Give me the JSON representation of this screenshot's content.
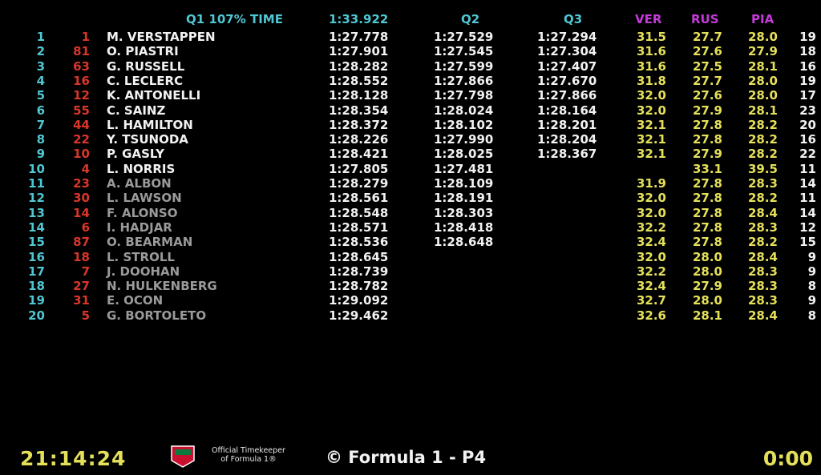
{
  "header": {
    "q1_label": "Q1 107% TIME",
    "q1_107_time": "1:33.922",
    "q2_label": "Q2",
    "q3_label": "Q3",
    "sector_labels": [
      "VER",
      "RUS",
      "PIA"
    ]
  },
  "rows": [
    {
      "pos": "1",
      "num": "1",
      "name": "M.  VERSTAPPEN",
      "q1": "1:27.778",
      "q2": "1:27.529",
      "q3": "1:27.294",
      "s1": "31.5",
      "s2": "27.7",
      "s3": "28.0",
      "laps": "19"
    },
    {
      "pos": "2",
      "num": "81",
      "name": "O.  PIASTRI",
      "q1": "1:27.901",
      "q2": "1:27.545",
      "q3": "1:27.304",
      "s1": "31.6",
      "s2": "27.6",
      "s3": "27.9",
      "laps": "18"
    },
    {
      "pos": "3",
      "num": "63",
      "name": "G.  RUSSELL",
      "q1": "1:28.282",
      "q2": "1:27.599",
      "q3": "1:27.407",
      "s1": "31.6",
      "s2": "27.5",
      "s3": "28.1",
      "laps": "16"
    },
    {
      "pos": "4",
      "num": "16",
      "name": "C.  LECLERC",
      "q1": "1:28.552",
      "q2": "1:27.866",
      "q3": "1:27.670",
      "s1": "31.8",
      "s2": "27.7",
      "s3": "28.0",
      "laps": "19"
    },
    {
      "pos": "5",
      "num": "12",
      "name": "K.  ANTONELLI",
      "q1": "1:28.128",
      "q2": "1:27.798",
      "q3": "1:27.866",
      "s1": "32.0",
      "s2": "27.6",
      "s3": "28.0",
      "laps": "17"
    },
    {
      "pos": "6",
      "num": "55",
      "name": "C.  SAINZ",
      "q1": "1:28.354",
      "q2": "1:28.024",
      "q3": "1:28.164",
      "s1": "32.0",
      "s2": "27.9",
      "s3": "28.1",
      "laps": "23"
    },
    {
      "pos": "7",
      "num": "44",
      "name": "L.  HAMILTON",
      "q1": "1:28.372",
      "q2": "1:28.102",
      "q3": "1:28.201",
      "s1": "32.1",
      "s2": "27.8",
      "s3": "28.2",
      "laps": "20"
    },
    {
      "pos": "8",
      "num": "22",
      "name": "Y.  TSUNODA",
      "q1": "1:28.226",
      "q2": "1:27.990",
      "q3": "1:28.204",
      "s1": "32.1",
      "s2": "27.8",
      "s3": "28.2",
      "laps": "16"
    },
    {
      "pos": "9",
      "num": "10",
      "name": "P.  GASLY",
      "q1": "1:28.421",
      "q2": "1:28.025",
      "q3": "1:28.367",
      "s1": "32.1",
      "s2": "27.9",
      "s3": "28.2",
      "laps": "22"
    },
    {
      "pos": "10",
      "num": "4",
      "name": "L.  NORRIS",
      "q1": "1:27.805",
      "q2": "1:27.481",
      "q3": "",
      "s1": "",
      "s2": "33.1",
      "s3": "39.5",
      "laps": "11"
    },
    {
      "pos": "11",
      "num": "23",
      "name": "A.  ALBON",
      "q1": "1:28.279",
      "q2": "1:28.109",
      "q3": "",
      "s1": "31.9",
      "s2": "27.8",
      "s3": "28.3",
      "laps": "14",
      "out": true
    },
    {
      "pos": "12",
      "num": "30",
      "name": "L.  LAWSON",
      "q1": "1:28.561",
      "q2": "1:28.191",
      "q3": "",
      "s1": "32.0",
      "s2": "27.8",
      "s3": "28.2",
      "laps": "11",
      "out": true
    },
    {
      "pos": "13",
      "num": "14",
      "name": "F.  ALONSO",
      "q1": "1:28.548",
      "q2": "1:28.303",
      "q3": "",
      "s1": "32.0",
      "s2": "27.8",
      "s3": "28.4",
      "laps": "14",
      "out": true
    },
    {
      "pos": "14",
      "num": "6",
      "name": "I.  HADJAR",
      "q1": "1:28.571",
      "q2": "1:28.418",
      "q3": "",
      "s1": "32.2",
      "s2": "27.8",
      "s3": "28.3",
      "laps": "12",
      "out": true
    },
    {
      "pos": "15",
      "num": "87",
      "name": "O.  BEARMAN",
      "q1": "1:28.536",
      "q2": "1:28.648",
      "q3": "",
      "s1": "32.4",
      "s2": "27.8",
      "s3": "28.2",
      "laps": "15",
      "out": true
    },
    {
      "pos": "16",
      "num": "18",
      "name": "L.  STROLL",
      "q1": "1:28.645",
      "q2": "",
      "q3": "",
      "s1": "32.0",
      "s2": "28.0",
      "s3": "28.4",
      "laps": "9",
      "out": true
    },
    {
      "pos": "17",
      "num": "7",
      "name": "J.  DOOHAN",
      "q1": "1:28.739",
      "q2": "",
      "q3": "",
      "s1": "32.2",
      "s2": "28.0",
      "s3": "28.3",
      "laps": "9",
      "out": true
    },
    {
      "pos": "18",
      "num": "27",
      "name": "N.  HULKENBERG",
      "q1": "1:28.782",
      "q2": "",
      "q3": "",
      "s1": "32.4",
      "s2": "27.9",
      "s3": "28.3",
      "laps": "8",
      "out": true
    },
    {
      "pos": "19",
      "num": "31",
      "name": "E.  OCON",
      "q1": "1:29.092",
      "q2": "",
      "q3": "",
      "s1": "32.7",
      "s2": "28.0",
      "s3": "28.3",
      "laps": "9",
      "out": true
    },
    {
      "pos": "20",
      "num": "5",
      "name": "G.  BORTOLETO",
      "q1": "1:29.462",
      "q2": "",
      "q3": "",
      "s1": "32.6",
      "s2": "28.1",
      "s3": "28.4",
      "laps": "8",
      "out": true
    }
  ],
  "footer": {
    "clock": "21:14:24",
    "logo_icon": "tag-heuer-logo-icon",
    "timekeeper_line1": "Official Timekeeper",
    "timekeeper_line2": "of Formula 1®",
    "copyright": "© Formula 1 - P4",
    "session_timer": "0:00"
  },
  "colors": {
    "cyan": "#4fc7d3",
    "red": "#d9362a",
    "yellow": "#e5e05a",
    "magenta": "#c53ad8",
    "white": "#f2f2f2",
    "grey": "#9a9a9a"
  }
}
